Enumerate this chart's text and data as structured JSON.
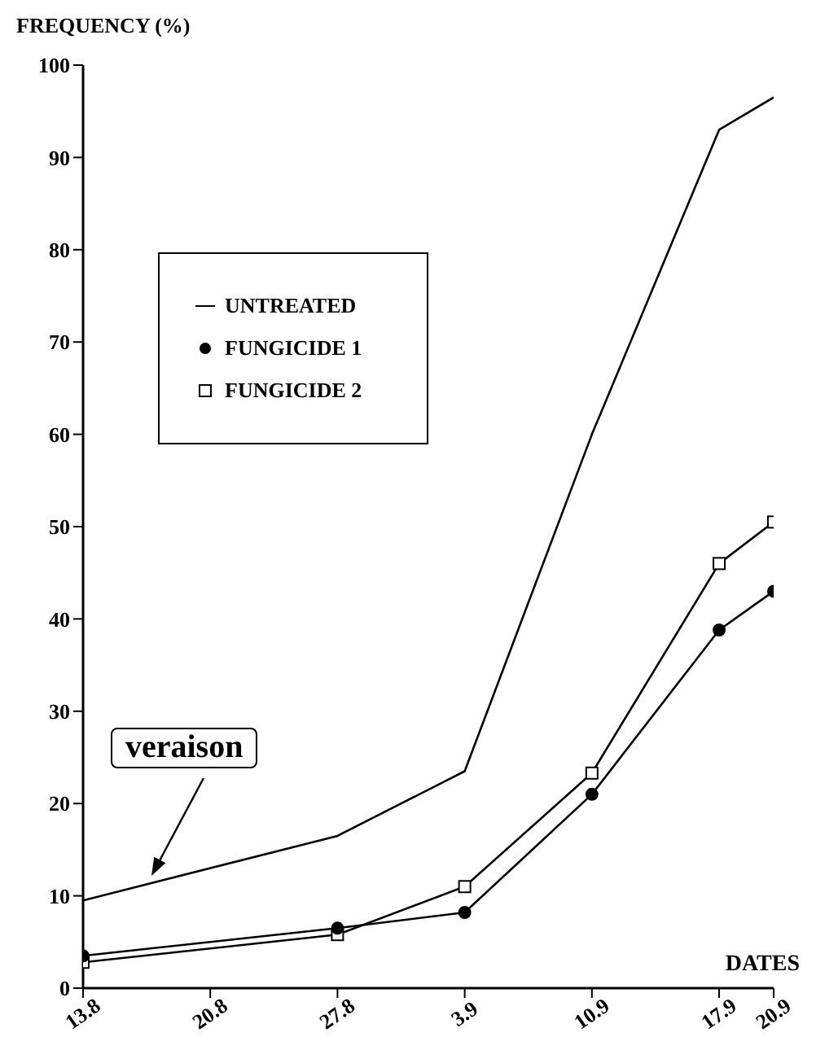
{
  "chart_data": {
    "type": "line",
    "ylabel": "FREQUENCY (%)",
    "xlabel": "DATES",
    "series": [
      {
        "name": "UNTREATED",
        "color": "#000000",
        "marker": "none",
        "x": [
          "--08-13",
          "--08-27",
          "--09-03",
          "--09-10",
          "--09-17",
          "--09-20"
        ],
        "values": [
          9.5,
          16.5,
          23.5,
          60,
          93,
          96.5
        ]
      },
      {
        "name": "FUNGICIDE 1",
        "color": "#000000",
        "marker": "circle",
        "x": [
          "--08-13",
          "--08-27",
          "--09-03",
          "--09-10",
          "--09-17",
          "--09-20"
        ],
        "values": [
          3.5,
          6.5,
          8.2,
          21,
          38.8,
          43
        ]
      },
      {
        "name": "FUNGICIDE 2",
        "color": "#000000",
        "marker": "square",
        "x": [
          "--08-13",
          "--08-27",
          "--09-03",
          "--09-10",
          "--09-17",
          "--09-20"
        ],
        "values": [
          2.8,
          5.8,
          11,
          23.3,
          46,
          50.5
        ]
      }
    ],
    "xlim": [
      "--08-13",
      "--09-20"
    ],
    "xticks": [
      {
        "value": "--08-13",
        "label": "13.8"
      },
      {
        "value": "--08-20",
        "label": "20.8"
      },
      {
        "value": "--08-27",
        "label": "27.8"
      },
      {
        "value": "--09-03",
        "label": "3.9"
      },
      {
        "value": "--09-10",
        "label": "10.9"
      },
      {
        "value": "--09-17",
        "label": "17.9"
      },
      {
        "value": "--09-20",
        "label": "20.9"
      }
    ],
    "ylim": [
      0,
      100
    ],
    "yticks": [
      0,
      10,
      20,
      30,
      40,
      50,
      60,
      70,
      80,
      90,
      100
    ],
    "grid": false,
    "legend": "top left",
    "annotations": [
      "veraison"
    ]
  }
}
